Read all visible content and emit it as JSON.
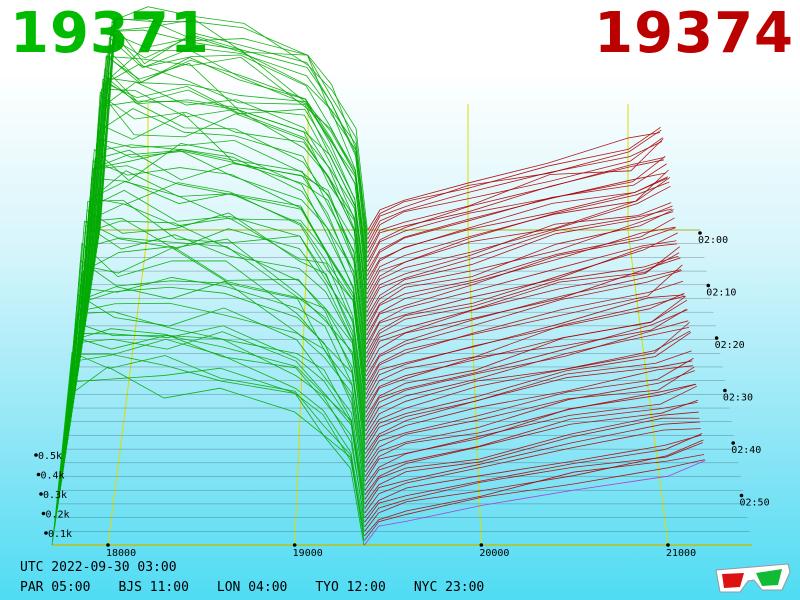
{
  "header": {
    "bid_price": "19371",
    "ask_price": "19374",
    "bid_color": "#00bb00",
    "ask_color": "#bb0000"
  },
  "footer": {
    "utc_label": "UTC 2022-09-30 03:00",
    "zones": [
      "PAR 05:00",
      "BJS 11:00",
      "LON 04:00",
      "TYO 12:00",
      "NYC 23:00"
    ]
  },
  "icons": {
    "glasses": "anaglyph-3d-glasses-icon"
  },
  "chart_data": {
    "type": "area",
    "title": "",
    "x_ticks": [
      18000,
      19000,
      20000,
      21000
    ],
    "x_tick_labels": [
      "18000",
      "19000",
      "20000",
      "21000"
    ],
    "y_ticks": [
      100,
      200,
      300,
      400,
      500
    ],
    "y_tick_labels": [
      "0.1k",
      "0.2k",
      "0.3k",
      "0.4k",
      "0.5k"
    ],
    "time_ticks": [
      "02:00",
      "02:10",
      "02:20",
      "02:30",
      "02:40",
      "02:50"
    ],
    "series": [
      {
        "name": "bid",
        "color": "#00aa00",
        "side": "bid"
      },
      {
        "name": "ask",
        "color": "#aa0000",
        "side": "ask"
      }
    ],
    "latest_depth": {
      "bid_price_points": [
        17800,
        18000,
        18300,
        18600,
        19000,
        19150,
        19300,
        19371
      ],
      "bid_cumulative": [
        270,
        265,
        260,
        250,
        220,
        180,
        120,
        0
      ],
      "ask_price_points": [
        19374,
        19450,
        19600,
        20000,
        20500,
        21000,
        21200
      ],
      "ask_cumulative": [
        0,
        20,
        30,
        45,
        65,
        80,
        95
      ]
    },
    "grid": true,
    "axes_color": "#dddd00"
  }
}
